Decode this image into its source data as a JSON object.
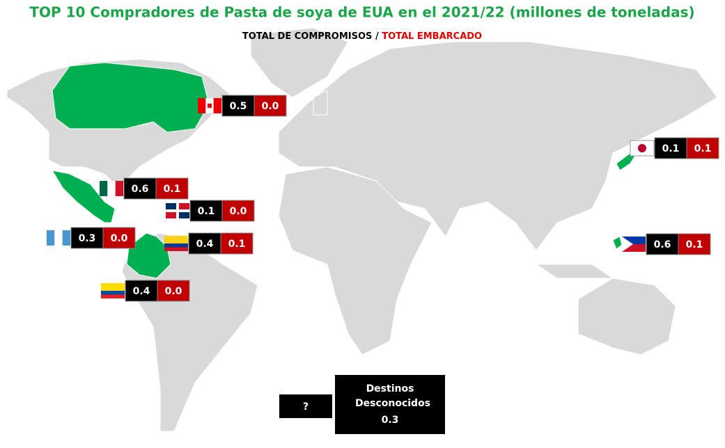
{
  "title": "TOP 10 Compradores de Pasta de soya de EUA en el 2021/22 (millones de toneladas)",
  "subtitle": {
    "committed_label": "TOTAL DE COMPROMISOS",
    "separator": "/",
    "shipped_label": "TOTAL EMBARCADO"
  },
  "countries": [
    {
      "committed": "0.5",
      "shipped": "0.0"
    },
    {
      "committed": "0.1",
      "shipped": "0.1"
    },
    {
      "committed": "0.6",
      "shipped": "0.1"
    },
    {
      "committed": "0.1",
      "shipped": "0.0"
    },
    {
      "committed": "0.3",
      "shipped": "0.0"
    },
    {
      "committed": "0.4",
      "shipped": "0.1"
    },
    {
      "committed": "0.4",
      "shipped": "0.0"
    },
    {
      "committed": "0.6",
      "shipped": "0.1"
    }
  ],
  "unknown": {
    "icon": "?",
    "label": "Destinos Desconocidos",
    "value": "0.3"
  }
}
